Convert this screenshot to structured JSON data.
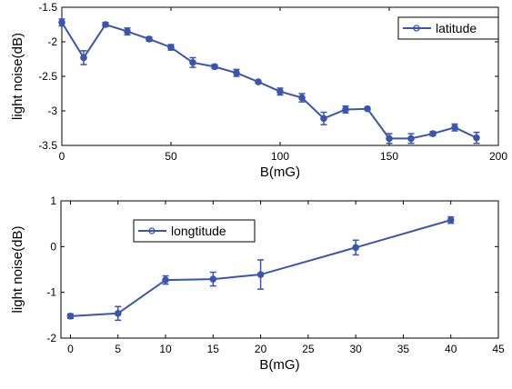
{
  "chart_data": [
    {
      "type": "line",
      "title": "",
      "xlabel": "B(mG)",
      "ylabel": "light noise(dB)",
      "xlim": [
        0,
        200
      ],
      "ylim": [
        -3.5,
        -1.5
      ],
      "xticks": [
        "0",
        "50",
        "100",
        "150",
        "200"
      ],
      "yticks": [
        "-1.5",
        "-2",
        "-2.5",
        "-3",
        "-3.5"
      ],
      "grid": false,
      "legend_position": "top-right",
      "series": [
        {
          "name": "latitude",
          "color": "#3a55b0",
          "x": [
            0,
            10,
            20,
            30,
            40,
            50,
            60,
            70,
            80,
            90,
            100,
            110,
            120,
            130,
            140,
            150,
            160,
            170,
            180,
            190
          ],
          "y": [
            -1.72,
            -2.23,
            -1.75,
            -1.85,
            -1.96,
            -2.08,
            -2.3,
            -2.36,
            -2.45,
            -2.58,
            -2.72,
            -2.81,
            -3.11,
            -2.98,
            -2.97,
            -3.4,
            -3.4,
            -3.33,
            -3.24,
            -3.39
          ],
          "err": [
            0.05,
            0.1,
            0.03,
            0.05,
            0.03,
            0.04,
            0.07,
            0.03,
            0.05,
            0.02,
            0.05,
            0.06,
            0.09,
            0.05,
            0.02,
            0.07,
            0.07,
            0.03,
            0.05,
            0.08
          ]
        }
      ]
    },
    {
      "type": "line",
      "title": "",
      "xlabel": "B(mG)",
      "ylabel": "light noise(dB)",
      "xlim": [
        -1,
        45
      ],
      "ylim": [
        -2,
        1
      ],
      "xticks": [
        "0",
        "5",
        "10",
        "15",
        "20",
        "25",
        "30",
        "35",
        "40",
        "45"
      ],
      "yticks": [
        "1",
        "0",
        "-1",
        "-2"
      ],
      "grid": false,
      "legend_position": "top-left",
      "series": [
        {
          "name": "longtitude",
          "color": "#3a55b0",
          "x": [
            0,
            5,
            10,
            15,
            20,
            30,
            40
          ],
          "y": [
            -1.52,
            -1.46,
            -0.73,
            -0.71,
            -0.61,
            -0.02,
            0.58
          ],
          "err": [
            0.05,
            0.15,
            0.09,
            0.15,
            0.32,
            0.16,
            0.07
          ]
        }
      ]
    }
  ]
}
